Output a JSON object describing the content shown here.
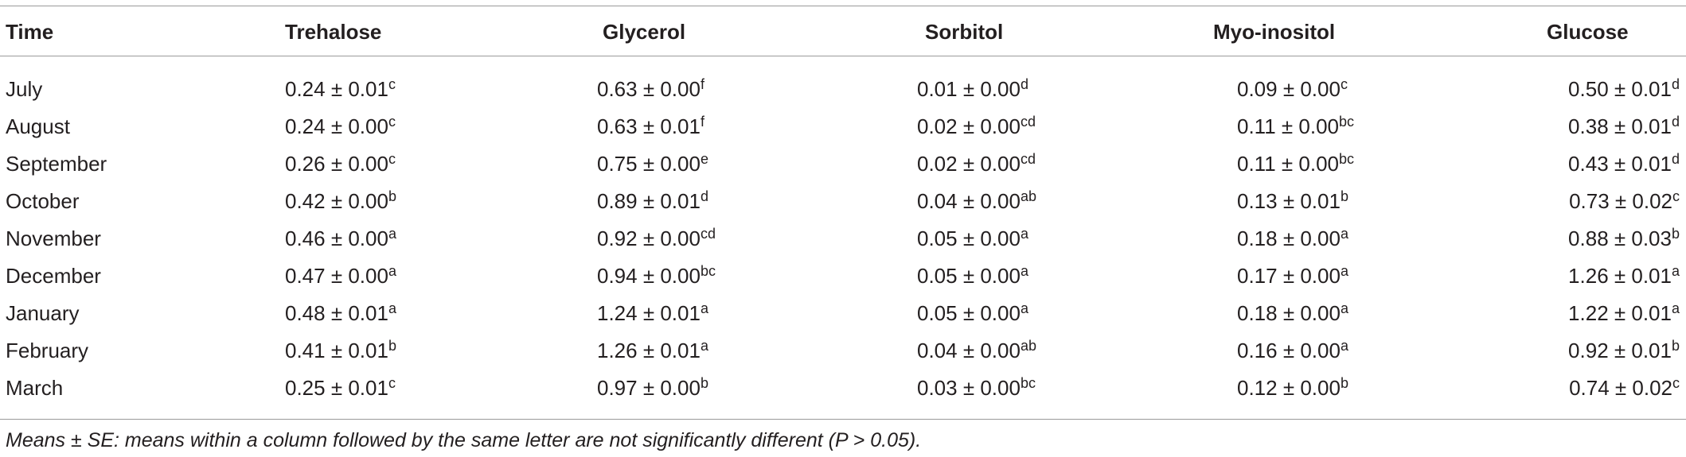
{
  "table": {
    "columns": [
      "Time",
      "Trehalose",
      "Glycerol",
      "Sorbitol",
      "Myo-inositol",
      "Glucose"
    ],
    "rows": [
      [
        "July",
        [
          "0.24 ± 0.01",
          "c"
        ],
        [
          "0.63 ± 0.00",
          "f"
        ],
        [
          "0.01 ± 0.00",
          "d"
        ],
        [
          "0.09 ± 0.00",
          "c"
        ],
        [
          "0.50 ± 0.01",
          "d"
        ]
      ],
      [
        "August",
        [
          "0.24 ± 0.00",
          "c"
        ],
        [
          "0.63 ± 0.01",
          "f"
        ],
        [
          "0.02 ± 0.00",
          "cd"
        ],
        [
          "0.11 ± 0.00",
          "bc"
        ],
        [
          "0.38 ± 0.01",
          "d"
        ]
      ],
      [
        "September",
        [
          "0.26 ± 0.00",
          "c"
        ],
        [
          "0.75 ± 0.00",
          "e"
        ],
        [
          "0.02 ± 0.00",
          "cd"
        ],
        [
          "0.11 ± 0.00",
          "bc"
        ],
        [
          "0.43 ± 0.01",
          "d"
        ]
      ],
      [
        "October",
        [
          "0.42 ± 0.00",
          "b"
        ],
        [
          "0.89 ± 0.01",
          "d"
        ],
        [
          "0.04 ± 0.00",
          "ab"
        ],
        [
          "0.13 ± 0.01",
          "b"
        ],
        [
          "0.73 ± 0.02",
          "c"
        ]
      ],
      [
        "November",
        [
          "0.46 ± 0.00",
          "a"
        ],
        [
          "0.92 ± 0.00",
          "cd"
        ],
        [
          "0.05 ± 0.00",
          "a"
        ],
        [
          "0.18 ± 0.00",
          "a"
        ],
        [
          "0.88 ± 0.03",
          "b"
        ]
      ],
      [
        "December",
        [
          "0.47 ± 0.00",
          "a"
        ],
        [
          "0.94 ± 0.00",
          "bc"
        ],
        [
          "0.05 ± 0.00",
          "a"
        ],
        [
          "0.17 ± 0.00",
          "a"
        ],
        [
          "1.26 ± 0.01",
          "a"
        ]
      ],
      [
        "January",
        [
          "0.48 ± 0.01",
          "a"
        ],
        [
          "1.24 ± 0.01",
          "a"
        ],
        [
          "0.05 ± 0.00",
          "a"
        ],
        [
          "0.18 ± 0.00",
          "a"
        ],
        [
          "1.22 ± 0.01",
          "a"
        ]
      ],
      [
        "February",
        [
          "0.41 ± 0.01",
          "b"
        ],
        [
          "1.26 ± 0.01",
          "a"
        ],
        [
          "0.04 ± 0.00",
          "ab"
        ],
        [
          "0.16 ± 0.00",
          "a"
        ],
        [
          "0.92 ± 0.01",
          "b"
        ]
      ],
      [
        "March",
        [
          "0.25 ± 0.01",
          "c"
        ],
        [
          "0.97 ± 0.00",
          "b"
        ],
        [
          "0.03 ± 0.00",
          "bc"
        ],
        [
          "0.12 ± 0.00",
          "b"
        ],
        [
          "0.74 ± 0.02",
          "c"
        ]
      ]
    ]
  },
  "footnote": "Means ± SE: means within a column followed by the same letter are not significantly different (P > 0.05)."
}
